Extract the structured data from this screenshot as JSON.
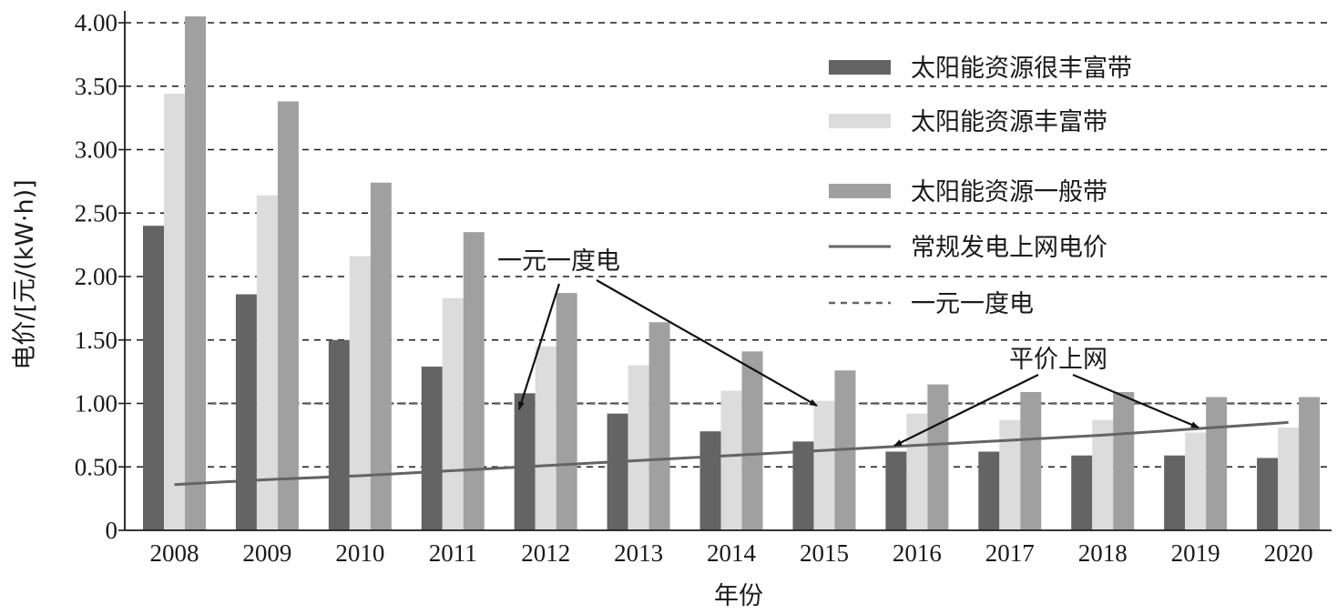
{
  "chart_data": {
    "type": "bar",
    "title": "",
    "xlabel": "年份",
    "ylabel": "电价/[元/(kW·h)]",
    "ylim": [
      0,
      4.0
    ],
    "yticks": [
      "0",
      "0.50",
      "1.00",
      "1.50",
      "2.00",
      "2.50",
      "3.00",
      "3.50",
      "4.00"
    ],
    "grid": "horizontal dashed",
    "legend_position": "top-right",
    "categories": [
      "2008",
      "2009",
      "2010",
      "2011",
      "2012",
      "2013",
      "2014",
      "2015",
      "2016",
      "2017",
      "2018",
      "2019",
      "2020"
    ],
    "series": [
      {
        "name": "太阳能资源很丰富带",
        "type": "bar",
        "color": "#646464",
        "values": [
          2.4,
          1.86,
          1.5,
          1.29,
          1.08,
          0.92,
          0.78,
          0.7,
          0.62,
          0.62,
          0.59,
          0.59,
          0.57
        ]
      },
      {
        "name": "太阳能资源丰富带",
        "type": "bar",
        "color": "#dcdcdc",
        "values": [
          3.44,
          2.64,
          2.16,
          1.83,
          1.45,
          1.3,
          1.1,
          1.02,
          0.92,
          0.87,
          0.87,
          0.77,
          0.81
        ]
      },
      {
        "name": "太阳能资源一般带",
        "type": "bar",
        "color": "#a0a0a0",
        "values": [
          4.05,
          3.38,
          2.74,
          2.35,
          1.87,
          1.64,
          1.41,
          1.26,
          1.15,
          1.09,
          1.09,
          1.05,
          1.05
        ]
      },
      {
        "name": "常规发电上网电价",
        "type": "line",
        "color": "#646464",
        "values": [
          0.36,
          0.4,
          0.43,
          0.47,
          0.51,
          0.55,
          0.59,
          0.63,
          0.67,
          0.71,
          0.75,
          0.8,
          0.85
        ]
      },
      {
        "name": "一元一度电",
        "type": "reference-line",
        "style": "dashed",
        "color": "#646464",
        "value": 1.0
      }
    ],
    "annotations": [
      {
        "text": "一元一度电",
        "points_to": [
          "2012",
          "2015"
        ]
      },
      {
        "text": "平价上网",
        "points_to": [
          "2016",
          "2019"
        ]
      }
    ]
  }
}
